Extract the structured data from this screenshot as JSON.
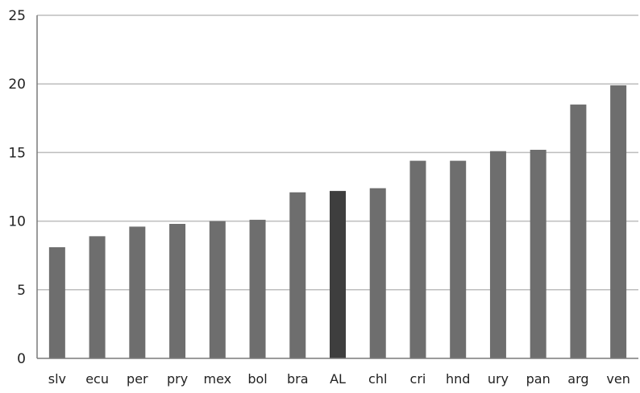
{
  "chart_data": {
    "type": "bar",
    "categories": [
      "slv",
      "ecu",
      "per",
      "pry",
      "mex",
      "bol",
      "bra",
      "AL",
      "chl",
      "cri",
      "hnd",
      "ury",
      "pan",
      "arg",
      "ven"
    ],
    "values": [
      8.1,
      8.9,
      9.6,
      9.8,
      10.0,
      10.1,
      12.1,
      12.2,
      12.4,
      14.4,
      14.4,
      15.1,
      15.2,
      18.5,
      19.9
    ],
    "ylim": [
      0,
      25
    ],
    "yticks": [
      0,
      5,
      10,
      15,
      20,
      25
    ],
    "title": "",
    "xlabel": "",
    "ylabel": "",
    "grid": true,
    "legend": "none",
    "colors": {
      "bar": "#6e6e6e",
      "highlight": "#3e3e3e",
      "highlight_category": "AL",
      "grid": "#bdbdbd",
      "axis": "#7a7a7a"
    }
  }
}
